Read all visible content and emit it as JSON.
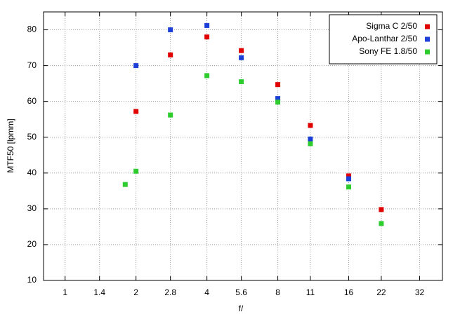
{
  "chart_data": {
    "type": "scatter",
    "xlabel": "f/",
    "ylabel": "MTF50 [lpmm]",
    "xscale": "log",
    "grid": true,
    "legend": "upper right",
    "xlim": [
      0.81,
      40
    ],
    "ylim": [
      10,
      85
    ],
    "xticks": [
      1,
      1.4,
      2,
      2.8,
      4,
      5.6,
      8,
      11,
      16,
      22,
      32
    ],
    "yticks": [
      10,
      20,
      30,
      40,
      50,
      60,
      70,
      80
    ],
    "series": [
      {
        "name": "Sigma C 2/50",
        "color": "#e00000",
        "x": [
          2,
          2.8,
          4,
          5.6,
          8,
          11,
          16,
          22
        ],
        "values": [
          57.2,
          73,
          78,
          74.2,
          64.7,
          53.3,
          39.2,
          29.8
        ]
      },
      {
        "name": "Apo-Lanthar 2/50",
        "color": "#1c3fd8",
        "x": [
          2,
          2.8,
          4,
          5.6,
          8,
          11,
          16
        ],
        "values": [
          70,
          80,
          81.2,
          72.2,
          60.8,
          49.5,
          38.4
        ]
      },
      {
        "name": "Sony FE 1.8/50",
        "color": "#2ecc2e",
        "x": [
          1.8,
          2,
          2.8,
          4,
          5.6,
          8,
          11,
          16,
          22
        ],
        "values": [
          36.8,
          40.5,
          56.2,
          67.2,
          65.5,
          59.8,
          48.2,
          36.1,
          25.9
        ]
      }
    ]
  }
}
